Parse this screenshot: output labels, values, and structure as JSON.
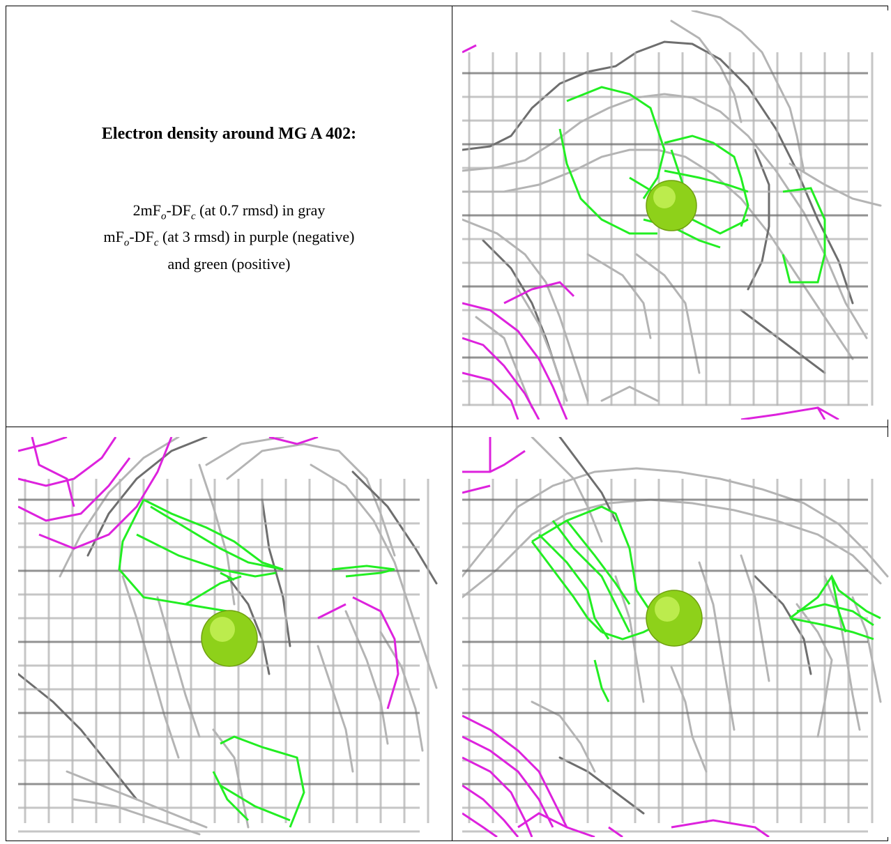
{
  "caption": {
    "title": "Electron density around MG A 402:",
    "line1": {
      "a": "2mF",
      "b": "o",
      "c": "-DF",
      "d": "c",
      "e": " (at 0.7 rmsd) in gray"
    },
    "line2": {
      "a": "mF",
      "b": "o",
      "c": "-DF",
      "d": "c",
      "e": " (at 3 rmsd) in purple (negative)"
    },
    "line3": "and green (positive)"
  },
  "colors": {
    "mesh_gray": "#b4b4b4",
    "mesh_dark": "#6e6e6e",
    "positive": "#22ee22",
    "negative": "#dd22dd",
    "ion": "#8ed11a"
  },
  "panels": [
    {
      "name": "top-right"
    },
    {
      "name": "bottom-left"
    },
    {
      "name": "bottom-right"
    }
  ]
}
